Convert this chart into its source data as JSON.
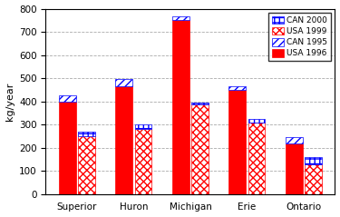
{
  "categories": [
    "Superior",
    "Huron",
    "Michigan",
    "Erie",
    "Ontario"
  ],
  "USA_1996": [
    400,
    465,
    750,
    450,
    220
  ],
  "CAN_1995_cap": [
    25,
    30,
    15,
    15,
    25
  ],
  "USA_1999": [
    250,
    280,
    385,
    310,
    130
  ],
  "CAN_2000_cap": [
    20,
    20,
    10,
    15,
    30
  ],
  "ylabel": "kg/year",
  "ylim": [
    0,
    800
  ],
  "yticks": [
    0,
    100,
    200,
    300,
    400,
    500,
    600,
    700,
    800
  ],
  "legend_labels": [
    "CAN 2000",
    "USA 1999",
    "CAN 1995",
    "USA 1996"
  ],
  "bar_width": 0.3,
  "background_color": "#ffffff",
  "grid_color": "#aaaaaa"
}
